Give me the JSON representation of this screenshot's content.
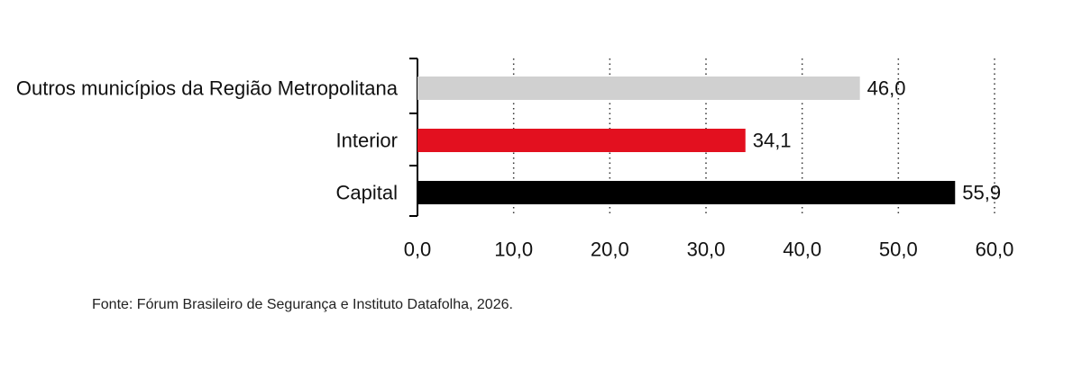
{
  "chart_data": {
    "type": "bar",
    "orientation": "horizontal",
    "categories": [
      "Outros municípios da Região Metropolitana",
      "Interior",
      "Capital"
    ],
    "values": [
      46.0,
      34.1,
      55.9
    ],
    "value_labels": [
      "46,0",
      "34,1",
      "55,9"
    ],
    "colors": [
      "#d0d0d0",
      "#e3101f",
      "#000000"
    ],
    "xlim": [
      0,
      60
    ],
    "ticks": [
      0,
      10,
      20,
      30,
      40,
      50,
      60
    ],
    "tick_labels": [
      "0,0",
      "10,0",
      "20,0",
      "30,0",
      "40,0",
      "50,0",
      "60,0"
    ],
    "grid": "vertical dotted",
    "title": "",
    "xlabel": "",
    "ylabel": ""
  },
  "source": "Fonte:  Fórum Brasileiro de Segurança e Instituto Datafolha, 2026."
}
